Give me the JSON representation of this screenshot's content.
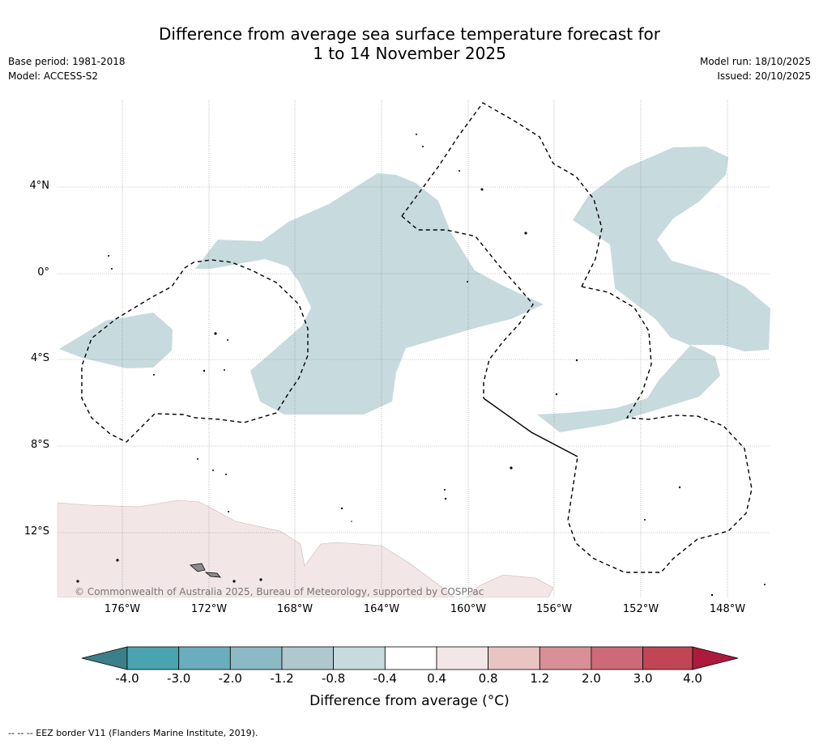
{
  "title": {
    "line1": "Difference from average sea surface temperature forecast for",
    "line2": "1 to 14 November 2025"
  },
  "meta": {
    "base_period": "Base period: 1981-2018",
    "model": "Model: ACCESS-S2",
    "model_run": "Model run: 18/10/2025",
    "issued": "Issued: 20/10/2025"
  },
  "map": {
    "lat_labels": [
      "4°N",
      "0°",
      "4°S",
      "8°S",
      "12°S"
    ],
    "lon_labels": [
      "176°W",
      "172°W",
      "168°W",
      "164°W",
      "160°W",
      "156°W",
      "152°W",
      "148°W"
    ],
    "copyright": "© Commonwealth of Australia 2025, Bureau of Meteorology, supported by COSPPac",
    "colors": {
      "cool_shade": "#c7dadd",
      "warm_shade": "#f3e6e7",
      "land": "#8c8c8c",
      "grid": "#888888"
    }
  },
  "colorbar": {
    "title": "Difference from average (°C)",
    "ticks": [
      "-4.0",
      "-3.0",
      "-2.0",
      "-1.2",
      "-0.8",
      "-0.4",
      "0.4",
      "0.8",
      "1.2",
      "2.0",
      "3.0",
      "4.0"
    ],
    "colors": [
      "#3b7f89",
      "#4aa3b1",
      "#6aadbc",
      "#8cb9c4",
      "#aec8cd",
      "#c7dadd",
      "#ffffff",
      "#f3e6e7",
      "#e8c5c3",
      "#d88f96",
      "#cc6a77",
      "#c04656",
      "#ae1a3c"
    ]
  },
  "footnote": "--  --  -- EEZ border V11 (Flanders Marine Institute, 2019)."
}
